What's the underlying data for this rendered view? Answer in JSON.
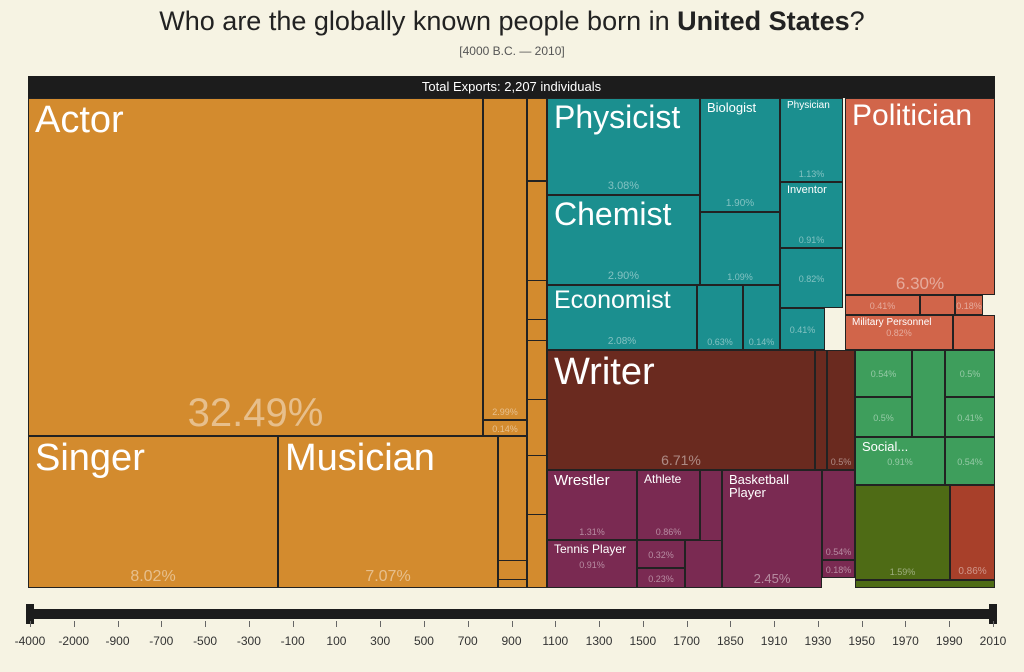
{
  "chart_data": {
    "type": "treemap",
    "title_prefix": "Who are the globally known people born in",
    "title_country": "United States",
    "title_suffix": "?",
    "subtitle": "[4000 B.C. — 2010]",
    "header": "Total Exports: 2,207 individuals",
    "categories": [
      "Actor",
      "Singer",
      "Musician",
      null,
      null,
      "Physicist",
      "Chemist",
      "Economist",
      "Biologist",
      "Physician",
      "Inventor",
      null,
      null,
      null,
      null,
      null,
      "Politician",
      null,
      null,
      "Military Personnel",
      "Writer",
      null,
      "Wrestler",
      "Tennis Player",
      "Athlete",
      null,
      null,
      "Basketball Player",
      null,
      null,
      null,
      null,
      null,
      null,
      "Social...",
      null,
      null,
      null
    ],
    "values": [
      32.49,
      8.02,
      7.07,
      2.99,
      0.14,
      3.08,
      2.9,
      2.08,
      1.9,
      1.13,
      0.91,
      1.09,
      0.82,
      0.63,
      0.14,
      0.41,
      6.3,
      0.41,
      0.18,
      0.82,
      6.71,
      0.5,
      1.31,
      0.91,
      0.86,
      0.32,
      0.23,
      2.45,
      0.54,
      0.18,
      0.54,
      0.5,
      0.5,
      0.41,
      0.91,
      0.54,
      1.59,
      0.86
    ],
    "value_labels": [
      "32.49%",
      "8.02%",
      "7.07%",
      "2.99%",
      "0.14%",
      "3.08%",
      "2.90%",
      "2.08%",
      "1.90%",
      "1.13%",
      "0.91%",
      "1.09%",
      "0.82%",
      "0.63%",
      "0.14%",
      "0.41%",
      "6.30%",
      "0.41%",
      "0.18%",
      "0.82%",
      "6.71%",
      "0.5%",
      "1.31%",
      "0.91%",
      "0.86%",
      "0.32%",
      "0.23%",
      "2.45%",
      "0.54%",
      "0.18%",
      "0.54%",
      "0.5%",
      "0.5%",
      "0.41%",
      "0.91%",
      "0.54%",
      "1.59%",
      "0.86%"
    ],
    "colors": [
      "#d38b2e",
      "#d38b2e",
      "#d38b2e",
      "#d38b2e",
      "#d38b2e",
      "#1b8f8f",
      "#1b8f8f",
      "#1b8f8f",
      "#1b8f8f",
      "#1b8f8f",
      "#1b8f8f",
      "#1b8f8f",
      "#1b8f8f",
      "#1b8f8f",
      "#1b8f8f",
      "#1b8f8f",
      "#d1654a",
      "#d1654a",
      "#d1654a",
      "#d1654a",
      "#6a2a1f",
      "#6a2a1f",
      "#7a2a52",
      "#7a2a52",
      "#7a2a52",
      "#7a2a52",
      "#7a2a52",
      "#7a2a52",
      "#7a2a52",
      "#7a2a52",
      "#3e9e5c",
      "#3e9e5c",
      "#3e9e5c",
      "#3e9e5c",
      "#3e9e5c",
      "#3e9e5c",
      "#4e6b15",
      "#a8402a"
    ],
    "timeline_ticks": [
      -4000,
      -2000,
      -900,
      -700,
      -500,
      -300,
      -100,
      100,
      300,
      500,
      700,
      900,
      1100,
      1300,
      1500,
      1700,
      1850,
      1910,
      1930,
      1950,
      1970,
      1990,
      2010
    ]
  }
}
